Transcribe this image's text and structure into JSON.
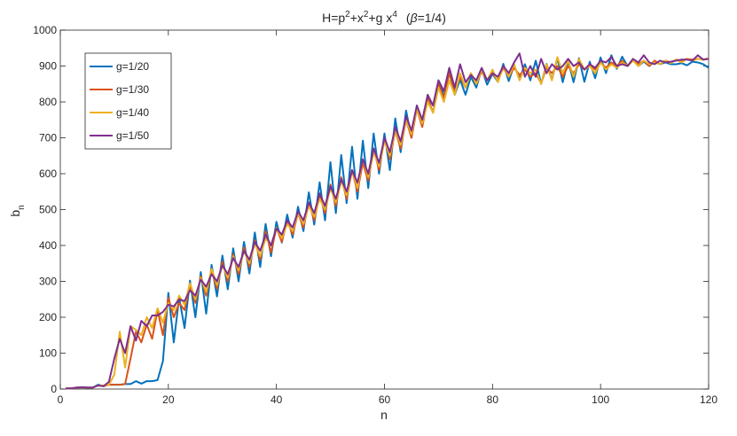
{
  "chart_data": {
    "type": "line",
    "title": {
      "prefix": "H=p",
      "sup1": "2",
      "mid1": "+x",
      "sup2": "2",
      "mid2": "+g x",
      "sup3": "4",
      "suffix_open": "(",
      "beta": "β",
      "suffix_close": "=1/4)"
    },
    "xlabel": "n",
    "ylabel": {
      "base": "b",
      "sub": "n"
    },
    "xlim": [
      0,
      120
    ],
    "ylim": [
      0,
      1000
    ],
    "xticks": [
      "0",
      "20",
      "40",
      "60",
      "80",
      "100",
      "120"
    ],
    "yticks": [
      "0",
      "100",
      "200",
      "300",
      "400",
      "500",
      "600",
      "700",
      "800",
      "900",
      "1000"
    ],
    "xtick_values": [
      0,
      20,
      40,
      60,
      80,
      100,
      120
    ],
    "ytick_values": [
      0,
      100,
      200,
      300,
      400,
      500,
      600,
      700,
      800,
      900,
      1000
    ],
    "grid": false,
    "legend_position": "top-left",
    "series": [
      {
        "name": "g=1/20",
        "color": "#0072BD",
        "x": [
          1,
          2,
          3,
          4,
          5,
          6,
          7,
          8,
          9,
          10,
          11,
          12,
          13,
          14,
          15,
          16,
          17,
          18,
          19,
          20,
          21,
          22,
          23,
          24,
          25,
          26,
          27,
          28,
          29,
          30,
          31,
          32,
          33,
          34,
          35,
          36,
          37,
          38,
          39,
          40,
          41,
          42,
          43,
          44,
          45,
          46,
          47,
          48,
          49,
          50,
          51,
          52,
          53,
          54,
          55,
          56,
          57,
          58,
          59,
          60,
          61,
          62,
          63,
          64,
          65,
          66,
          67,
          68,
          69,
          70,
          71,
          72,
          73,
          74,
          75,
          76,
          77,
          78,
          79,
          80,
          81,
          82,
          83,
          84,
          85,
          86,
          87,
          88,
          89,
          90,
          91,
          92,
          93,
          94,
          95,
          96,
          97,
          98,
          99,
          100,
          101,
          102,
          103,
          104,
          105,
          106,
          107,
          108,
          109,
          110,
          111,
          112,
          113,
          114,
          115,
          116,
          117,
          118,
          119,
          120
        ],
        "y": [
          2,
          2,
          4,
          5,
          4,
          4,
          12,
          8,
          12,
          12,
          12,
          14,
          14,
          22,
          15,
          22,
          22,
          25,
          78,
          268,
          130,
          255,
          170,
          302,
          200,
          326,
          210,
          346,
          258,
          372,
          278,
          392,
          300,
          410,
          322,
          436,
          340,
          460,
          370,
          466,
          408,
          486,
          422,
          508,
          440,
          548,
          458,
          576,
          470,
          632,
          490,
          652,
          518,
          675,
          530,
          692,
          560,
          712,
          600,
          712,
          610,
          754,
          660,
          776,
          700,
          790,
          736,
          812,
          790,
          860,
          815,
          882,
          820,
          862,
          820,
          870,
          840,
          892,
          848,
          878,
          856,
          906,
          858,
          902,
          864,
          905,
          860,
          915,
          850,
          906,
          862,
          922,
          855,
          915,
          855,
          922,
          856,
          912,
          866,
          924,
          880,
          930,
          892,
          926,
          900,
          918,
          900,
          912,
          900,
          912,
          905,
          910,
          905,
          905,
          908,
          902,
          912,
          910,
          905,
          895
        ]
      },
      {
        "name": "g=1/30",
        "color": "#D95319",
        "x": [
          1,
          2,
          3,
          4,
          5,
          6,
          7,
          8,
          9,
          10,
          11,
          12,
          13,
          14,
          15,
          16,
          17,
          18,
          19,
          20,
          21,
          22,
          23,
          24,
          25,
          26,
          27,
          28,
          29,
          30,
          31,
          32,
          33,
          34,
          35,
          36,
          37,
          38,
          39,
          40,
          41,
          42,
          43,
          44,
          45,
          46,
          47,
          48,
          49,
          50,
          51,
          52,
          53,
          54,
          55,
          56,
          57,
          58,
          59,
          60,
          61,
          62,
          63,
          64,
          65,
          66,
          67,
          68,
          69,
          70,
          71,
          72,
          73,
          74,
          75,
          76,
          77,
          78,
          79,
          80,
          81,
          82,
          83,
          84,
          85,
          86,
          87,
          88,
          89,
          90,
          91,
          92,
          93,
          94,
          95,
          96,
          97,
          98,
          99,
          100,
          101,
          102,
          103,
          104,
          105,
          106,
          107,
          108,
          109,
          110,
          111,
          112,
          113,
          114,
          115,
          116,
          117,
          118,
          119,
          120
        ],
        "y": [
          2,
          2,
          4,
          5,
          4,
          4,
          10,
          8,
          12,
          12,
          12,
          14,
          85,
          160,
          130,
          180,
          140,
          220,
          150,
          255,
          200,
          240,
          220,
          290,
          240,
          315,
          260,
          330,
          280,
          355,
          300,
          375,
          320,
          395,
          340,
          415,
          360,
          440,
          380,
          450,
          410,
          470,
          430,
          490,
          450,
          520,
          470,
          540,
          490,
          570,
          510,
          590,
          530,
          610,
          550,
          630,
          580,
          670,
          610,
          700,
          640,
          720,
          670,
          750,
          700,
          780,
          730,
          810,
          770,
          850,
          810,
          880,
          830,
          870,
          840,
          880,
          850,
          885,
          860,
          880,
          860,
          895,
          870,
          895,
          875,
          890,
          870,
          880,
          852,
          895,
          880,
          900,
          870,
          900,
          880,
          905,
          890,
          905,
          890,
          910,
          895,
          910,
          900,
          915,
          900,
          915,
          905,
          915,
          900,
          915,
          905,
          915,
          910,
          918,
          915,
          920,
          918,
          920,
          918,
          920
        ]
      },
      {
        "name": "g=1/40",
        "color": "#EDB120",
        "x": [
          1,
          2,
          3,
          4,
          5,
          6,
          7,
          8,
          9,
          10,
          11,
          12,
          13,
          14,
          15,
          16,
          17,
          18,
          19,
          20,
          21,
          22,
          23,
          24,
          25,
          26,
          27,
          28,
          29,
          30,
          31,
          32,
          33,
          34,
          35,
          36,
          37,
          38,
          39,
          40,
          41,
          42,
          43,
          44,
          45,
          46,
          47,
          48,
          49,
          50,
          51,
          52,
          53,
          54,
          55,
          56,
          57,
          58,
          59,
          60,
          61,
          62,
          63,
          64,
          65,
          66,
          67,
          68,
          69,
          70,
          71,
          72,
          73,
          74,
          75,
          76,
          77,
          78,
          79,
          80,
          81,
          82,
          83,
          84,
          85,
          86,
          87,
          88,
          89,
          90,
          91,
          92,
          93,
          94,
          95,
          96,
          97,
          98,
          99,
          100,
          101,
          102,
          103,
          104,
          105,
          106,
          107,
          108,
          109,
          110,
          111,
          112,
          113,
          114,
          115,
          116,
          117,
          118,
          119,
          120
        ],
        "y": [
          2,
          2,
          4,
          5,
          4,
          4,
          10,
          10,
          12,
          40,
          160,
          60,
          175,
          165,
          150,
          200,
          170,
          225,
          185,
          240,
          220,
          260,
          235,
          295,
          250,
          310,
          270,
          335,
          290,
          345,
          310,
          370,
          330,
          385,
          350,
          405,
          370,
          420,
          400,
          450,
          420,
          460,
          440,
          490,
          460,
          510,
          480,
          530,
          500,
          560,
          520,
          580,
          540,
          610,
          560,
          640,
          590,
          660,
          620,
          690,
          650,
          720,
          680,
          750,
          710,
          780,
          740,
          800,
          770,
          840,
          800,
          860,
          820,
          880,
          840,
          880,
          850,
          890,
          860,
          890,
          855,
          900,
          870,
          905,
          860,
          895,
          880,
          890,
          850,
          905,
          860,
          925,
          880,
          915,
          870,
          920,
          890,
          900,
          880,
          910,
          890,
          905,
          895,
          910,
          900,
          915,
          900,
          915,
          905,
          910,
          905,
          915,
          908,
          918,
          910,
          920,
          915,
          920,
          918,
          922
        ]
      },
      {
        "name": "g=1/50",
        "color": "#7E2F8E",
        "x": [
          1,
          2,
          3,
          4,
          5,
          6,
          7,
          8,
          9,
          10,
          11,
          12,
          13,
          14,
          15,
          16,
          17,
          18,
          19,
          20,
          21,
          22,
          23,
          24,
          25,
          26,
          27,
          28,
          29,
          30,
          31,
          32,
          33,
          34,
          35,
          36,
          37,
          38,
          39,
          40,
          41,
          42,
          43,
          44,
          45,
          46,
          47,
          48,
          49,
          50,
          51,
          52,
          53,
          54,
          55,
          56,
          57,
          58,
          59,
          60,
          61,
          62,
          63,
          64,
          65,
          66,
          67,
          68,
          69,
          70,
          71,
          72,
          73,
          74,
          75,
          76,
          77,
          78,
          79,
          80,
          81,
          82,
          83,
          84,
          85,
          86,
          87,
          88,
          89,
          90,
          91,
          92,
          93,
          94,
          95,
          96,
          97,
          98,
          99,
          100,
          101,
          102,
          103,
          104,
          105,
          106,
          107,
          108,
          109,
          110,
          111,
          112,
          113,
          114,
          115,
          116,
          117,
          118,
          119,
          120
        ],
        "y": [
          2,
          2,
          4,
          5,
          4,
          4,
          10,
          8,
          20,
          85,
          140,
          100,
          175,
          135,
          190,
          175,
          205,
          205,
          215,
          235,
          230,
          250,
          245,
          275,
          260,
          305,
          285,
          320,
          300,
          345,
          320,
          365,
          340,
          385,
          360,
          410,
          385,
          430,
          400,
          448,
          430,
          470,
          450,
          495,
          470,
          520,
          490,
          545,
          510,
          565,
          530,
          585,
          550,
          610,
          575,
          640,
          600,
          670,
          630,
          700,
          660,
          730,
          690,
          760,
          720,
          790,
          750,
          820,
          790,
          860,
          830,
          895,
          840,
          905,
          855,
          875,
          860,
          895,
          860,
          880,
          870,
          900,
          880,
          910,
          935,
          870,
          900,
          870,
          920,
          880,
          905,
          890,
          900,
          920,
          900,
          910,
          890,
          905,
          895,
          915,
          910,
          925,
          900,
          905,
          900,
          920,
          910,
          930,
          910,
          905,
          915,
          910,
          912,
          915,
          918,
          918,
          915,
          930,
          918,
          920
        ]
      }
    ]
  }
}
